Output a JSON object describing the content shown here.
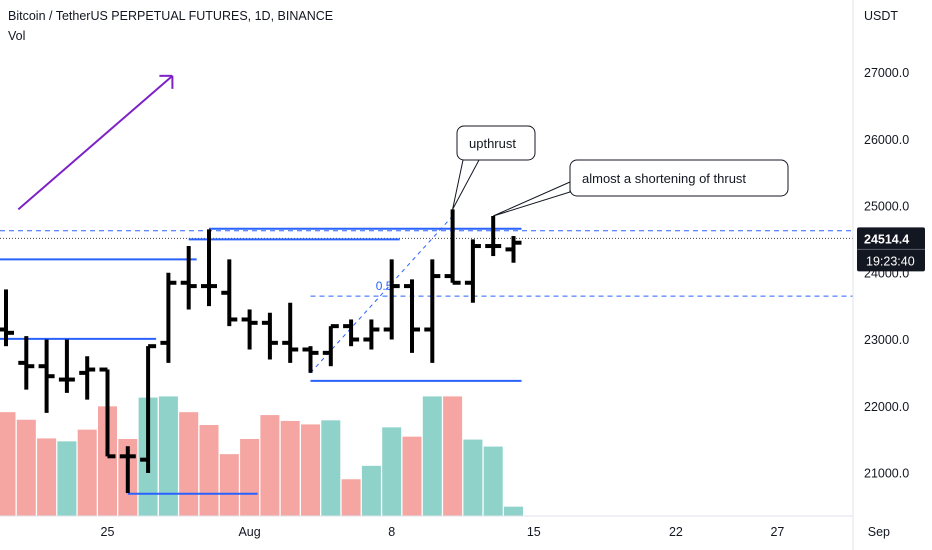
{
  "header": {
    "title": "Bitcoin / TetherUS PERPETUAL FUTURES, 1D, BINANCE",
    "volume_label": "Vol",
    "currency": "USDT"
  },
  "colors": {
    "candle": "#000000",
    "volume_up": "#8fd2ca",
    "volume_down": "#f5a5a2",
    "level_line": "#2962ff",
    "arrow": "#7e22c8",
    "price_badge": "#131722",
    "dotted_price": "#444444"
  },
  "chart_data": {
    "type": "ohlc",
    "y_ticks": [
      "27000.0",
      "26000.0",
      "25000.0",
      "24000.0",
      "23000.0",
      "22000.0",
      "21000.0"
    ],
    "y_tick_values": [
      27000,
      26000,
      25000,
      24000,
      23000,
      22000,
      21000
    ],
    "x_ticks": [
      "25",
      "Aug",
      "8",
      "15",
      "22",
      "27",
      "Sep"
    ],
    "x_tick_dates": [
      "2022-07-25",
      "2022-08-01",
      "2022-08-08",
      "2022-08-15",
      "2022-08-22",
      "2022-08-27",
      "2022-09-01"
    ],
    "ylim": [
      20450,
      27950
    ],
    "xlim": [
      "2022-07-20",
      "2022-09-01"
    ],
    "current_price": "24514.4",
    "countdown": "19:23:40",
    "bars": [
      {
        "date": "2022-07-20",
        "open": 23150,
        "high": 23750,
        "low": 22900,
        "close": 23100
      },
      {
        "date": "2022-07-21",
        "open": 22650,
        "high": 23050,
        "low": 22250,
        "close": 22600
      },
      {
        "date": "2022-07-22",
        "open": 22600,
        "high": 23000,
        "low": 21900,
        "close": 22450
      },
      {
        "date": "2022-07-23",
        "open": 22400,
        "high": 23000,
        "low": 22200,
        "close": 22400
      },
      {
        "date": "2022-07-24",
        "open": 22500,
        "high": 22750,
        "low": 22100,
        "close": 22550
      },
      {
        "date": "2022-07-25",
        "open": 22550,
        "high": 22550,
        "low": 21250,
        "close": 21250
      },
      {
        "date": "2022-07-26",
        "open": 21250,
        "high": 21400,
        "low": 20700,
        "close": 21250
      },
      {
        "date": "2022-07-27",
        "open": 21200,
        "high": 22900,
        "low": 21000,
        "close": 22900
      },
      {
        "date": "2022-07-28",
        "open": 22950,
        "high": 24000,
        "low": 22650,
        "close": 23850
      },
      {
        "date": "2022-07-29",
        "open": 23850,
        "high": 24400,
        "low": 23450,
        "close": 23800
      },
      {
        "date": "2022-07-30",
        "open": 23800,
        "high": 24650,
        "low": 23500,
        "close": 23800
      },
      {
        "date": "2022-07-31",
        "open": 23700,
        "high": 24200,
        "low": 23200,
        "close": 23300
      },
      {
        "date": "2022-08-01",
        "open": 23300,
        "high": 23450,
        "low": 22850,
        "close": 23250
      },
      {
        "date": "2022-08-02",
        "open": 23250,
        "high": 23400,
        "low": 22700,
        "close": 22950
      },
      {
        "date": "2022-08-03",
        "open": 22950,
        "high": 23550,
        "low": 22650,
        "close": 22850
      },
      {
        "date": "2022-08-04",
        "open": 22850,
        "high": 22900,
        "low": 22500,
        "close": 22800
      },
      {
        "date": "2022-08-05",
        "open": 22800,
        "high": 23200,
        "low": 22600,
        "close": 23200
      },
      {
        "date": "2022-08-06",
        "open": 23200,
        "high": 23300,
        "low": 22900,
        "close": 23000
      },
      {
        "date": "2022-08-07",
        "open": 23000,
        "high": 23300,
        "low": 22850,
        "close": 23150
      },
      {
        "date": "2022-08-08",
        "open": 23150,
        "high": 24200,
        "low": 23000,
        "close": 23800
      },
      {
        "date": "2022-08-09",
        "open": 23800,
        "high": 23900,
        "low": 22800,
        "close": 23150
      },
      {
        "date": "2022-08-10",
        "open": 23150,
        "high": 24200,
        "low": 22650,
        "close": 23950
      },
      {
        "date": "2022-08-11",
        "open": 23950,
        "high": 24950,
        "low": 23850,
        "close": 23850
      },
      {
        "date": "2022-08-12",
        "open": 23850,
        "high": 24500,
        "low": 23550,
        "close": 24400
      },
      {
        "date": "2022-08-13",
        "open": 24400,
        "high": 24850,
        "low": 24250,
        "close": 24400
      },
      {
        "date": "2022-08-14",
        "open": 24350,
        "high": 24550,
        "low": 24150,
        "close": 24450
      }
    ],
    "volume_scale_top": 2400,
    "volumes": [
      {
        "date": "2022-07-20",
        "value": 1780,
        "direction": "down"
      },
      {
        "date": "2022-07-21",
        "value": 1650,
        "direction": "down"
      },
      {
        "date": "2022-07-22",
        "value": 1330,
        "direction": "down"
      },
      {
        "date": "2022-07-23",
        "value": 1280,
        "direction": "up"
      },
      {
        "date": "2022-07-24",
        "value": 1480,
        "direction": "down"
      },
      {
        "date": "2022-07-25",
        "value": 1880,
        "direction": "down"
      },
      {
        "date": "2022-07-26",
        "value": 1320,
        "direction": "down"
      },
      {
        "date": "2022-07-27",
        "value": 2030,
        "direction": "up"
      },
      {
        "date": "2022-07-28",
        "value": 2050,
        "direction": "up"
      },
      {
        "date": "2022-07-29",
        "value": 1780,
        "direction": "down"
      },
      {
        "date": "2022-07-30",
        "value": 1560,
        "direction": "down"
      },
      {
        "date": "2022-07-31",
        "value": 1060,
        "direction": "down"
      },
      {
        "date": "2022-08-01",
        "value": 1320,
        "direction": "down"
      },
      {
        "date": "2022-08-02",
        "value": 1730,
        "direction": "down"
      },
      {
        "date": "2022-08-03",
        "value": 1630,
        "direction": "down"
      },
      {
        "date": "2022-08-04",
        "value": 1570,
        "direction": "down"
      },
      {
        "date": "2022-08-05",
        "value": 1640,
        "direction": "up"
      },
      {
        "date": "2022-08-06",
        "value": 630,
        "direction": "down"
      },
      {
        "date": "2022-08-07",
        "value": 860,
        "direction": "up"
      },
      {
        "date": "2022-08-08",
        "value": 1520,
        "direction": "up"
      },
      {
        "date": "2022-08-09",
        "value": 1360,
        "direction": "down"
      },
      {
        "date": "2022-08-10",
        "value": 2050,
        "direction": "up"
      },
      {
        "date": "2022-08-11",
        "value": 2050,
        "direction": "down"
      },
      {
        "date": "2022-08-12",
        "value": 1310,
        "direction": "up"
      },
      {
        "date": "2022-08-13",
        "value": 1190,
        "direction": "up"
      },
      {
        "date": "2022-08-14",
        "value": 160,
        "direction": "up"
      }
    ],
    "levels_solid": [
      {
        "from": "2022-07-20",
        "to": "2022-07-29",
        "price": 24200
      },
      {
        "from": "2022-07-20",
        "to": "2022-07-27",
        "price": 23010
      },
      {
        "from": "2022-07-26",
        "to": "2022-08-01",
        "price": 20690
      },
      {
        "from": "2022-07-29",
        "to": "2022-08-08",
        "price": 24500
      },
      {
        "from": "2022-07-30",
        "to": "2022-08-14",
        "price": 24660
      },
      {
        "from": "2022-08-04",
        "to": "2022-08-14",
        "price": 22380
      }
    ],
    "levels_dashed": [
      {
        "from": "2022-07-20",
        "to": "2022-09-01",
        "price": 24630
      },
      {
        "from": "2022-08-04",
        "to": "2022-09-01",
        "price": 23650
      }
    ],
    "fib_line": {
      "from_date": "2022-08-04",
      "from_price": 22500,
      "to_date": "2022-08-11",
      "to_price": 24850
    },
    "fib_label": "0.5",
    "fib_label_price": 23800,
    "fib_label_date": "2022-08-08",
    "trend_arrow": {
      "from_date": "2022-07-21",
      "from_price": 24950,
      "to_date": "2022-07-28",
      "to_price": 26950
    },
    "callouts": [
      {
        "text": "upthrust",
        "point_date": "2022-08-11",
        "point_price": 24950
      },
      {
        "text": "almost a shortening of thrust",
        "point_date": "2022-08-13",
        "point_price": 24850
      }
    ]
  }
}
